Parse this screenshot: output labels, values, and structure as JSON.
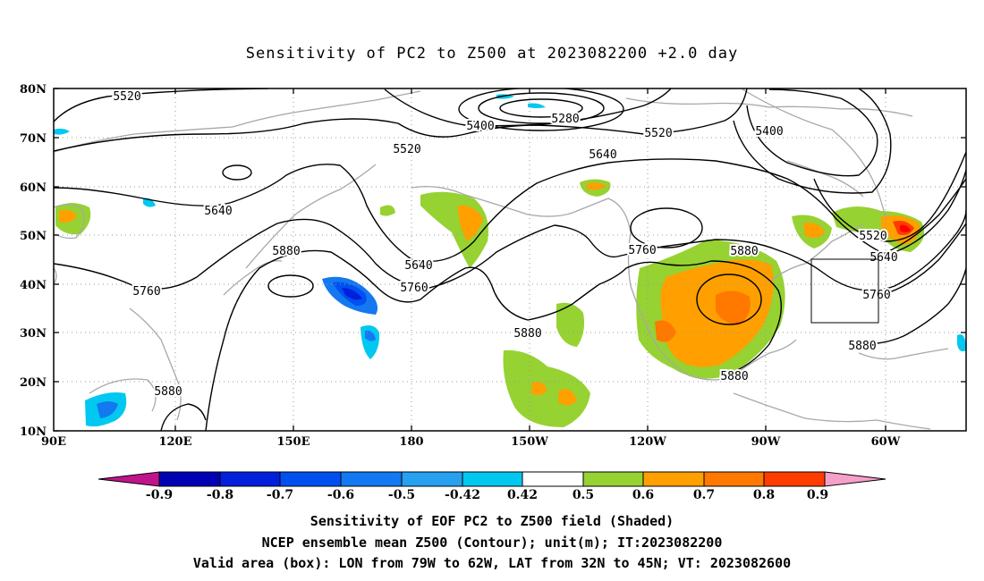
{
  "title": "Sensitivity of PC2 to Z500 at 2023082200 +2.0 day",
  "lat_labels": [
    "80N",
    "70N",
    "60N",
    "50N",
    "40N",
    "30N",
    "20N",
    "10N"
  ],
  "lon_labels": [
    "90E",
    "120E",
    "150E",
    "180",
    "150W",
    "120W",
    "90W",
    "60W"
  ],
  "contour_labels": [
    "5520",
    "5280",
    "5400",
    "5520",
    "5400",
    "5520",
    "5640",
    "5640",
    "5880",
    "5640",
    "5760",
    "5760",
    "5880",
    "5520",
    "5640",
    "5760",
    "5760",
    "5880",
    "5880",
    "5880",
    "5880"
  ],
  "colorbar": {
    "ticks": [
      "-0.9",
      "-0.8",
      "-0.7",
      "-0.6",
      "-0.5",
      "-0.42",
      "0.42",
      "0.5",
      "0.6",
      "0.7",
      "0.8",
      "0.9"
    ],
    "colors": [
      "#c0148c",
      "#0000b4",
      "#0020dc",
      "#0050f0",
      "#1478f0",
      "#28a0f0",
      "#00c8f0",
      "#ffffff",
      "#96d232",
      "#ffa000",
      "#ff7800",
      "#ff3c00",
      "#ff0000",
      "#f5a0c8"
    ]
  },
  "captions": [
    "Sensitivity of EOF PC2 to Z500 field (Shaded)",
    "NCEP ensemble mean Z500 (Contour); unit(m); IT:2023082200",
    "Valid area (box): LON from 79W to 62W, LAT from 32N to 45N; VT: 2023082600"
  ]
}
